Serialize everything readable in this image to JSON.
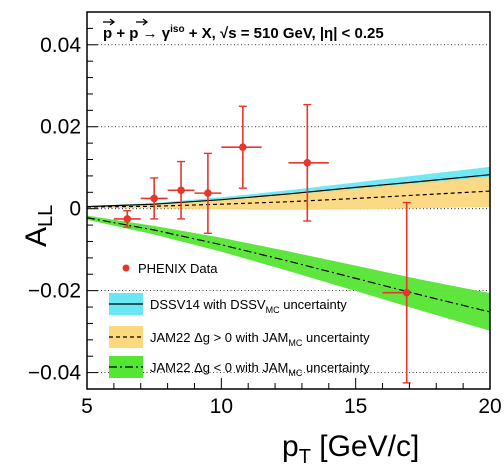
{
  "chart_data": {
    "type": "scatter",
    "title": {
      "proc": "p + p → γ",
      "sup": "iso",
      "rest": " + X,  √s = 510 GeV, |η| < 0.25"
    },
    "xlabel": {
      "main": "p",
      "sub": "T",
      "rest": " [GeV/c]"
    },
    "ylabel": {
      "main": "A",
      "sub": "LL"
    },
    "xlim": [
      5,
      20
    ],
    "ylim": [
      -0.044,
      0.048
    ],
    "xticks": [
      {
        "value": 5,
        "label": "5"
      },
      {
        "value": 10,
        "label": "10"
      },
      {
        "value": 15,
        "label": "15"
      },
      {
        "value": 20,
        "label": "20"
      }
    ],
    "yticks": [
      {
        "value": -0.04,
        "label": "−0.04"
      },
      {
        "value": -0.02,
        "label": "−0.02"
      },
      {
        "value": 0,
        "label": "0"
      },
      {
        "value": 0.02,
        "label": "0.02"
      },
      {
        "value": 0.04,
        "label": "0.04"
      }
    ],
    "gridlines_y": [
      -0.04,
      -0.02,
      0,
      0.02,
      0.04
    ],
    "grid": "dotted horizontal",
    "colors": {
      "data": "#e8372a",
      "dssv_band": "#69e8f3",
      "jam_pos_band": "#fcd87e",
      "jam_neg_band": "#55e534"
    },
    "series": [
      {
        "name": "PHENIX Data",
        "kind": "points",
        "points": [
          {
            "x": 6.5,
            "xlo": 6.0,
            "xhi": 7.0,
            "y": -0.0025,
            "ylo": -0.0045,
            "yhi": -0.0005
          },
          {
            "x": 7.5,
            "xlo": 7.0,
            "xhi": 8.0,
            "y": 0.0025,
            "ylo": -0.0025,
            "yhi": 0.0075
          },
          {
            "x": 8.5,
            "xlo": 8.0,
            "xhi": 9.0,
            "y": 0.0045,
            "ylo": -0.0025,
            "yhi": 0.0115
          },
          {
            "x": 9.5,
            "xlo": 9.0,
            "xhi": 10.0,
            "y": 0.0038,
            "ylo": -0.006,
            "yhi": 0.0135
          },
          {
            "x": 10.8,
            "xlo": 10.0,
            "xhi": 11.5,
            "y": 0.015,
            "ylo": 0.005,
            "yhi": 0.025
          },
          {
            "x": 13.2,
            "xlo": 12.5,
            "xhi": 14.0,
            "y": 0.0112,
            "ylo": -0.003,
            "yhi": 0.0254
          },
          {
            "x": 16.9,
            "xlo": 16.0,
            "xhi": 17.0,
            "y": -0.0205,
            "ylo": -0.0425,
            "yhi": 0.0015
          }
        ]
      },
      {
        "name": "DSSV14 with DSSV uncertainty",
        "label_main": "DSSV14 with DSSV",
        "label_sub": "MC",
        "label_rest": " uncertainty",
        "kind": "band",
        "x": [
          5,
          7.5,
          10,
          12.5,
          15,
          17.5,
          20
        ],
        "y": [
          0.0005,
          0.0011,
          0.0022,
          0.0036,
          0.0052,
          0.0067,
          0.0083
        ],
        "ylo": [
          0.0004,
          0.0009,
          0.0017,
          0.0029,
          0.0043,
          0.0055,
          0.0068
        ],
        "yhi": [
          0.0006,
          0.0014,
          0.0028,
          0.0045,
          0.0064,
          0.0083,
          0.0102
        ]
      },
      {
        "name": "JAM22 Δg > 0 with JAM uncertainty",
        "label_main": "JAM22 Δg > 0 with JAM",
        "label_sub": "MC",
        "label_rest": " uncertainty",
        "kind": "band",
        "x": [
          5,
          7.5,
          10,
          12.5,
          15,
          17.5,
          20
        ],
        "y": [
          0.0004,
          0.0006,
          0.0011,
          0.0017,
          0.0025,
          0.0034,
          0.0043
        ],
        "ylo": [
          0.0003,
          0.0001,
          -0.0002,
          -0.0003,
          -0.0002,
          0.0001,
          0.0004
        ],
        "yhi": [
          0.0005,
          0.0011,
          0.0022,
          0.0035,
          0.0049,
          0.0064,
          0.0078
        ]
      },
      {
        "name": "JAM22 Δg < 0 with JAM uncertainty",
        "label_main": "JAM22 Δg < 0 with JAM",
        "label_sub": "MC",
        "label_rest": " uncertainty",
        "kind": "band",
        "x": [
          5,
          7.5,
          10,
          12.5,
          15,
          17.5,
          20
        ],
        "y": [
          -0.0022,
          -0.0052,
          -0.0088,
          -0.0128,
          -0.017,
          -0.0212,
          -0.0252
        ],
        "ylo": [
          -0.0027,
          -0.0063,
          -0.0105,
          -0.0152,
          -0.0201,
          -0.025,
          -0.0298
        ],
        "yhi": [
          -0.0017,
          -0.0042,
          -0.0071,
          -0.0104,
          -0.0139,
          -0.0174,
          -0.0206
        ]
      }
    ]
  }
}
